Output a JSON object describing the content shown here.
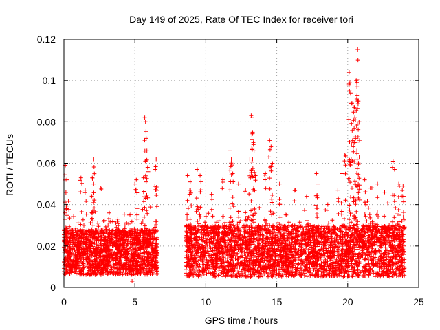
{
  "chart_data": {
    "type": "scatter",
    "title": "Day 149 of 2025, Rate Of TEC Index for receiver tori",
    "xlabel": "GPS time / hours",
    "ylabel": "ROTI / TECUs",
    "xlim": [
      0,
      25
    ],
    "ylim": [
      0,
      0.12
    ],
    "xticks": [
      0,
      5,
      10,
      15,
      20,
      25
    ],
    "xtick_labels": [
      "0",
      "5",
      "10",
      "15",
      "20",
      "25"
    ],
    "yticks": [
      0,
      0.02,
      0.04,
      0.06,
      0.08,
      0.1,
      0.12
    ],
    "ytick_labels": [
      "0",
      "0.02",
      "0.04",
      "0.06",
      "0.08",
      "0.1",
      "0.12"
    ],
    "grid": true,
    "marker": "+",
    "color": "#ff0000",
    "series": [
      {
        "name": "ROTI",
        "segments": [
          {
            "x_start": 0.0,
            "x_end": 6.6,
            "base_min": 0.006,
            "base_max": 0.028
          },
          {
            "x_start": 8.6,
            "x_end": 24.0,
            "base_min": 0.005,
            "base_max": 0.03
          }
        ],
        "notable_points": [
          {
            "x": 0.1,
            "y": 0.059
          },
          {
            "x": 0.2,
            "y": 0.052
          },
          {
            "x": 0.05,
            "y": 0.036
          },
          {
            "x": 1.2,
            "y": 0.053
          },
          {
            "x": 1.5,
            "y": 0.047
          },
          {
            "x": 2.1,
            "y": 0.05
          },
          {
            "x": 2.0,
            "y": 0.053
          },
          {
            "x": 2.1,
            "y": 0.062
          },
          {
            "x": 2.6,
            "y": 0.048
          },
          {
            "x": 3.2,
            "y": 0.036
          },
          {
            "x": 3.8,
            "y": 0.033
          },
          {
            "x": 4.6,
            "y": 0.035
          },
          {
            "x": 5.0,
            "y": 0.05
          },
          {
            "x": 5.1,
            "y": 0.052
          },
          {
            "x": 5.6,
            "y": 0.053
          },
          {
            "x": 5.7,
            "y": 0.082
          },
          {
            "x": 5.75,
            "y": 0.08
          },
          {
            "x": 5.8,
            "y": 0.072
          },
          {
            "x": 5.85,
            "y": 0.066
          },
          {
            "x": 5.9,
            "y": 0.058
          },
          {
            "x": 6.5,
            "y": 0.062
          },
          {
            "x": 6.45,
            "y": 0.057
          },
          {
            "x": 8.7,
            "y": 0.054
          },
          {
            "x": 8.9,
            "y": 0.051
          },
          {
            "x": 9.4,
            "y": 0.057
          },
          {
            "x": 9.6,
            "y": 0.054
          },
          {
            "x": 10.4,
            "y": 0.045
          },
          {
            "x": 11.2,
            "y": 0.052
          },
          {
            "x": 11.7,
            "y": 0.066
          },
          {
            "x": 11.8,
            "y": 0.062
          },
          {
            "x": 11.9,
            "y": 0.055
          },
          {
            "x": 12.3,
            "y": 0.05
          },
          {
            "x": 12.8,
            "y": 0.047
          },
          {
            "x": 13.2,
            "y": 0.083
          },
          {
            "x": 13.25,
            "y": 0.082
          },
          {
            "x": 13.3,
            "y": 0.075
          },
          {
            "x": 13.35,
            "y": 0.07
          },
          {
            "x": 13.4,
            "y": 0.066
          },
          {
            "x": 13.1,
            "y": 0.062
          },
          {
            "x": 13.5,
            "y": 0.054
          },
          {
            "x": 14.2,
            "y": 0.055
          },
          {
            "x": 14.5,
            "y": 0.071
          },
          {
            "x": 14.6,
            "y": 0.068
          },
          {
            "x": 14.7,
            "y": 0.06
          },
          {
            "x": 15.2,
            "y": 0.05
          },
          {
            "x": 16.3,
            "y": 0.047
          },
          {
            "x": 17.1,
            "y": 0.044
          },
          {
            "x": 17.8,
            "y": 0.055
          },
          {
            "x": 17.9,
            "y": 0.05
          },
          {
            "x": 19.3,
            "y": 0.047
          },
          {
            "x": 19.6,
            "y": 0.055
          },
          {
            "x": 19.8,
            "y": 0.064
          },
          {
            "x": 20.1,
            "y": 0.104
          },
          {
            "x": 20.15,
            "y": 0.099
          },
          {
            "x": 20.2,
            "y": 0.094
          },
          {
            "x": 20.3,
            "y": 0.089
          },
          {
            "x": 20.45,
            "y": 0.087
          },
          {
            "x": 20.5,
            "y": 0.082
          },
          {
            "x": 20.6,
            "y": 0.1
          },
          {
            "x": 20.65,
            "y": 0.097
          },
          {
            "x": 20.7,
            "y": 0.115
          },
          {
            "x": 20.72,
            "y": 0.11
          },
          {
            "x": 20.55,
            "y": 0.072
          },
          {
            "x": 20.4,
            "y": 0.068
          },
          {
            "x": 20.8,
            "y": 0.08
          },
          {
            "x": 21.2,
            "y": 0.052
          },
          {
            "x": 21.6,
            "y": 0.048
          },
          {
            "x": 22.1,
            "y": 0.05
          },
          {
            "x": 22.6,
            "y": 0.046
          },
          {
            "x": 23.2,
            "y": 0.061
          },
          {
            "x": 23.3,
            "y": 0.057
          },
          {
            "x": 23.6,
            "y": 0.05
          },
          {
            "x": 23.9,
            "y": 0.049
          },
          {
            "x": 23.95,
            "y": 0.044
          },
          {
            "x": 4.8,
            "y": 0.003
          }
        ]
      }
    ]
  }
}
